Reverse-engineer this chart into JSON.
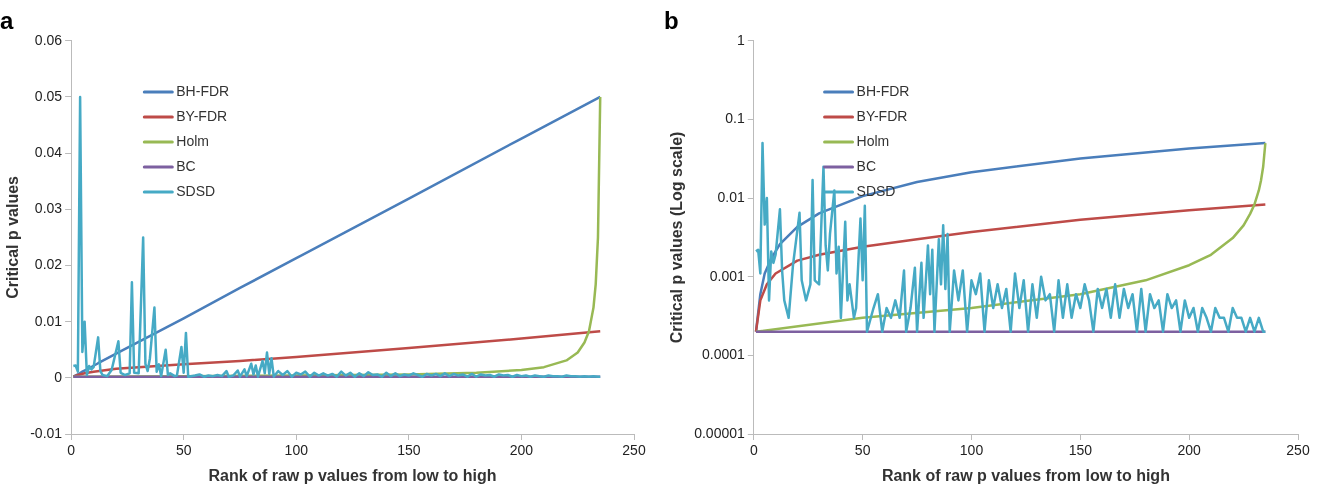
{
  "chart_data": [
    {
      "type": "line",
      "title": "a",
      "xlabel": "Rank of raw p values from low to high",
      "ylabel": "Critical p values",
      "xlim": [
        0,
        250
      ],
      "xticks": [
        0,
        50,
        100,
        150,
        200,
        250
      ],
      "ylim": [
        -0.01,
        0.06
      ],
      "yticks": [
        -0.01,
        0,
        0.01,
        0.02,
        0.03,
        0.04,
        0.05,
        0.06
      ],
      "grid": false,
      "legend": "top left",
      "marker": "none",
      "line_style": "solid",
      "series": [
        {
          "name": "BH-FDR",
          "color": "#4a7ebb",
          "x": [
            1,
            3,
            5,
            8,
            12,
            20,
            30,
            50,
            75,
            100,
            150,
            200,
            235
          ],
          "values": [
            0.0002,
            0.0006,
            0.0011,
            0.0017,
            0.0026,
            0.0043,
            0.0064,
            0.0106,
            0.016,
            0.0213,
            0.0319,
            0.0426,
            0.05
          ]
        },
        {
          "name": "BY-FDR",
          "color": "#be4b48",
          "x": [
            1,
            3,
            6,
            10,
            20,
            30,
            50,
            75,
            100,
            150,
            200,
            235
          ],
          "values": [
            0.0002,
            0.0005,
            0.0008,
            0.0011,
            0.0016,
            0.0019,
            0.0024,
            0.003,
            0.0037,
            0.0053,
            0.007,
            0.0083
          ]
        },
        {
          "name": "Holm",
          "color": "#98b954",
          "x": [
            1,
            50,
            100,
            150,
            180,
            200,
            210,
            220,
            225,
            228,
            230,
            232,
            233,
            234,
            235
          ],
          "values": [
            0.0002,
            0.0003,
            0.0004,
            0.0006,
            0.0009,
            0.0014,
            0.0019,
            0.0031,
            0.0045,
            0.0063,
            0.0083,
            0.0125,
            0.0167,
            0.025,
            0.05
          ]
        },
        {
          "name": "BC",
          "color": "#7d60a0",
          "x": [
            1,
            235
          ],
          "values": [
            0.0002,
            0.0002
          ]
        },
        {
          "name": "SDSD",
          "color": "#46aac5",
          "x": [
            1,
            2,
            3,
            4,
            5,
            6,
            7,
            8,
            9,
            10,
            12,
            13,
            14,
            16,
            18,
            21,
            22,
            24,
            26,
            27,
            28,
            30,
            32,
            33,
            34,
            35,
            37,
            38,
            39,
            40,
            42,
            43,
            44,
            46,
            47,
            49,
            50,
            51,
            52,
            55,
            57,
            59,
            61,
            63,
            65,
            67,
            69,
            70,
            72,
            74,
            75,
            77,
            78,
            80,
            81,
            82,
            83,
            85,
            86,
            87,
            88,
            89,
            90,
            92,
            94,
            96,
            98,
            100,
            102,
            104,
            106,
            108,
            110,
            112,
            114,
            116,
            118,
            120,
            122,
            124,
            126,
            128,
            130,
            132,
            134,
            136,
            138,
            140,
            142,
            144,
            146,
            148,
            150,
            152,
            154,
            156,
            158,
            160,
            162,
            164,
            166,
            168,
            170,
            172,
            174,
            176,
            178,
            180,
            182,
            184,
            186,
            188,
            190,
            192,
            194,
            196,
            198,
            200,
            202,
            204,
            206,
            208,
            210,
            212,
            214,
            216,
            218,
            220,
            222,
            224,
            226,
            228,
            230,
            232,
            234,
            235
          ],
          "values": [
            0.0021,
            0.0022,
            0.0011,
            0.05,
            0.0046,
            0.01,
            0.0005,
            0.0021,
            0.0015,
            0.0019,
            0.0072,
            0.0012,
            0.0005,
            0.0003,
            0.0014,
            0.0065,
            0.0009,
            0.0005,
            0.0008,
            0.017,
            0.0009,
            0.0008,
            0.025,
            0.0025,
            0.0012,
            0.0035,
            0.0125,
            0.0011,
            0.0024,
            0.0003,
            0.005,
            0.0005,
            0.0008,
            0.0003,
            0.0004,
            0.0055,
            0.0009,
            0.008,
            0.0002,
            0.0004,
            0.0006,
            0.0002,
            0.0004,
            0.0003,
            0.0005,
            0.0003,
            0.0012,
            0.0002,
            0.0004,
            0.0013,
            0.0002,
            0.0015,
            0.0003,
            0.0025,
            0.0006,
            0.0022,
            0.0002,
            0.003,
            0.0008,
            0.0045,
            0.0007,
            0.0035,
            0.0002,
            0.0012,
            0.0005,
            0.0012,
            0.0002,
            0.0009,
            0.0006,
            0.0011,
            0.0002,
            0.0009,
            0.0004,
            0.0008,
            0.0004,
            0.0007,
            0.0002,
            0.0011,
            0.0004,
            0.0009,
            0.0002,
            0.0008,
            0.0003,
            0.001,
            0.0005,
            0.0006,
            0.0002,
            0.0009,
            0.0003,
            0.0008,
            0.0003,
            0.0006,
            0.0004,
            0.0008,
            0.0005,
            0.0002,
            0.0007,
            0.0004,
            0.0007,
            0.0003,
            0.0008,
            0.0003,
            0.0007,
            0.0004,
            0.0006,
            0.0002,
            0.0007,
            0.0002,
            0.0006,
            0.0004,
            0.0005,
            0.0002,
            0.0006,
            0.0004,
            0.0005,
            0.0002,
            0.0005,
            0.0003,
            0.0004,
            0.0002,
            0.0004,
            0.0003,
            0.0002,
            0.0004,
            0.0003,
            0.0003,
            0.0002,
            0.0004,
            0.0003,
            0.0003,
            0.0002,
            0.0003,
            0.0002,
            0.0003,
            0.0002,
            0.0002
          ]
        }
      ]
    },
    {
      "type": "line",
      "title": "b",
      "xlabel": "Rank of raw p values from low to high",
      "ylabel": "Critical p values (Log scale)",
      "log": true,
      "xlim": [
        0,
        250
      ],
      "xticks": [
        0,
        50,
        100,
        150,
        200,
        250
      ],
      "ylim": [
        1e-05,
        1
      ],
      "yticks": [
        {
          "value": 1e-05,
          "label": "0.00001"
        },
        0.0001,
        0.001,
        0.01,
        0.1,
        1
      ],
      "grid": false,
      "legend": "top left",
      "marker": "none",
      "line_style": "solid",
      "series": [
        {
          "name": "BH-FDR",
          "color": "#4a7ebb",
          "x": [
            1,
            3,
            5,
            8,
            12,
            20,
            30,
            50,
            75,
            100,
            150,
            200,
            235
          ],
          "values": [
            0.0002,
            0.0006,
            0.0011,
            0.0017,
            0.0026,
            0.0043,
            0.0064,
            0.0106,
            0.016,
            0.0213,
            0.0319,
            0.0426,
            0.05
          ]
        },
        {
          "name": "BY-FDR",
          "color": "#be4b48",
          "x": [
            1,
            3,
            6,
            10,
            20,
            30,
            50,
            75,
            100,
            150,
            200,
            235
          ],
          "values": [
            0.0002,
            0.0005,
            0.0008,
            0.0011,
            0.0016,
            0.0019,
            0.0024,
            0.003,
            0.0037,
            0.0053,
            0.007,
            0.0083
          ]
        },
        {
          "name": "Holm",
          "color": "#98b954",
          "x": [
            1,
            50,
            100,
            150,
            180,
            200,
            210,
            220,
            225,
            228,
            230,
            232,
            233,
            234,
            235
          ],
          "values": [
            0.0002,
            0.0003,
            0.0004,
            0.0006,
            0.0009,
            0.0014,
            0.0019,
            0.0031,
            0.0045,
            0.0063,
            0.0083,
            0.0125,
            0.0167,
            0.025,
            0.05
          ]
        },
        {
          "name": "BC",
          "color": "#7d60a0",
          "x": [
            1,
            235
          ],
          "values": [
            0.0002,
            0.0002
          ]
        },
        {
          "name": "SDSD",
          "color": "#46aac5",
          "x": [
            1,
            2,
            3,
            4,
            5,
            6,
            7,
            8,
            9,
            10,
            12,
            13,
            14,
            16,
            18,
            21,
            22,
            24,
            26,
            27,
            28,
            30,
            32,
            33,
            34,
            35,
            37,
            38,
            39,
            40,
            42,
            43,
            44,
            46,
            47,
            49,
            50,
            51,
            52,
            55,
            57,
            59,
            61,
            63,
            65,
            67,
            69,
            70,
            72,
            74,
            75,
            77,
            78,
            80,
            81,
            82,
            83,
            85,
            86,
            87,
            88,
            89,
            90,
            92,
            94,
            96,
            98,
            100,
            102,
            104,
            106,
            108,
            110,
            112,
            114,
            116,
            118,
            120,
            122,
            124,
            126,
            128,
            130,
            132,
            134,
            136,
            138,
            140,
            142,
            144,
            146,
            148,
            150,
            152,
            154,
            156,
            158,
            160,
            162,
            164,
            166,
            168,
            170,
            172,
            174,
            176,
            178,
            180,
            182,
            184,
            186,
            188,
            190,
            192,
            194,
            196,
            198,
            200,
            202,
            204,
            206,
            208,
            210,
            212,
            214,
            216,
            218,
            220,
            222,
            224,
            226,
            228,
            230,
            232,
            234,
            235
          ],
          "values": [
            0.0021,
            0.0022,
            0.0011,
            0.05,
            0.0046,
            0.01,
            0.0005,
            0.0021,
            0.0015,
            0.0019,
            0.0072,
            0.0012,
            0.0005,
            0.0003,
            0.0014,
            0.0065,
            0.0009,
            0.0005,
            0.0008,
            0.017,
            0.0009,
            0.0008,
            0.025,
            0.0025,
            0.0012,
            0.0035,
            0.0125,
            0.0011,
            0.0024,
            0.0003,
            0.005,
            0.0005,
            0.0008,
            0.0003,
            0.0004,
            0.0055,
            0.0009,
            0.008,
            0.0002,
            0.0004,
            0.0006,
            0.0002,
            0.0004,
            0.0003,
            0.0005,
            0.0003,
            0.0012,
            0.0002,
            0.0004,
            0.0013,
            0.0002,
            0.0015,
            0.0003,
            0.0025,
            0.0006,
            0.0022,
            0.0002,
            0.003,
            0.0008,
            0.0045,
            0.0007,
            0.0035,
            0.0002,
            0.0012,
            0.0005,
            0.0012,
            0.0002,
            0.0009,
            0.0006,
            0.0011,
            0.0002,
            0.0009,
            0.0004,
            0.0008,
            0.0004,
            0.0007,
            0.0002,
            0.0011,
            0.0004,
            0.0009,
            0.0002,
            0.0008,
            0.0003,
            0.001,
            0.0005,
            0.0006,
            0.0002,
            0.0009,
            0.0003,
            0.0008,
            0.0003,
            0.0006,
            0.0004,
            0.0008,
            0.0005,
            0.0002,
            0.0007,
            0.0004,
            0.0007,
            0.0003,
            0.0008,
            0.0003,
            0.0007,
            0.0004,
            0.0006,
            0.0002,
            0.0007,
            0.0002,
            0.0006,
            0.0004,
            0.0005,
            0.0002,
            0.0006,
            0.0004,
            0.0005,
            0.0002,
            0.0005,
            0.0003,
            0.0004,
            0.0002,
            0.0004,
            0.0003,
            0.0002,
            0.0004,
            0.0003,
            0.0003,
            0.0002,
            0.0004,
            0.0003,
            0.0003,
            0.0002,
            0.0003,
            0.0002,
            0.0003,
            0.0002,
            0.0002
          ]
        }
      ]
    }
  ]
}
